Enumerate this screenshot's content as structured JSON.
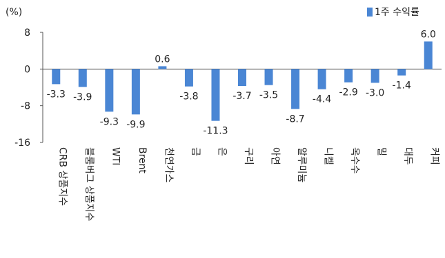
{
  "chart_data": {
    "type": "bar",
    "unit_label": "(%)",
    "categories": [
      "CRB 상품지수",
      "블룸버그 상품지수",
      "WTI",
      "Brent",
      "천연가스",
      "금",
      "은",
      "구리",
      "아연",
      "알루미늄",
      "니켈",
      "옥수수",
      "밀",
      "대두",
      "커피"
    ],
    "series": [
      {
        "name": "1주 수익률",
        "values": [
          -3.3,
          -3.9,
          -9.3,
          -9.9,
          0.6,
          -3.8,
          -11.3,
          -3.7,
          -3.5,
          -8.7,
          -4.4,
          -2.9,
          -3.0,
          -1.4,
          6.0
        ]
      }
    ],
    "data_labels": [
      "-3.3",
      "-3.9",
      "-9.3",
      "-9.9",
      "0.6",
      "-3.8",
      "-11.3",
      "-3.7",
      "-3.5",
      "-8.7",
      "-4.4",
      "-2.9",
      "-3.0",
      "-1.4",
      "6.0"
    ],
    "yticks": [
      "8",
      "0",
      "-8",
      "-16"
    ],
    "ylim": [
      -16,
      8
    ],
    "grid": false,
    "legend_position": "top-right",
    "colors": {
      "bar": "#4a86d4",
      "axis": "#555555",
      "text": "#222222"
    }
  }
}
